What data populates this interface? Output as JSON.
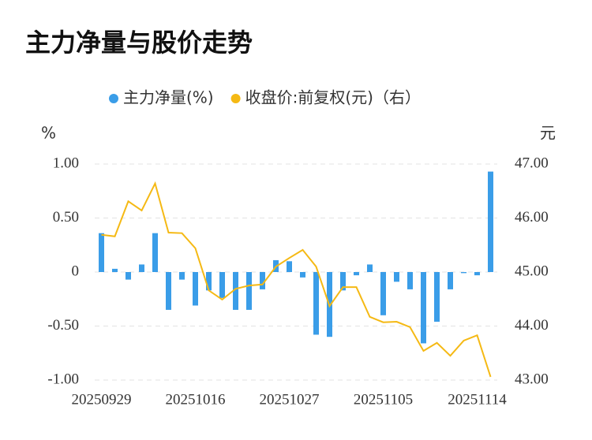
{
  "chart_data": {
    "type": "bar-line",
    "title": "主力净量与股价走势",
    "y_label": "%",
    "y2_label": "元",
    "categories": [
      "20250929",
      null,
      null,
      null,
      null,
      null,
      null,
      "20251016",
      null,
      null,
      null,
      null,
      null,
      null,
      "20251027",
      null,
      null,
      null,
      null,
      null,
      null,
      "20251105",
      null,
      null,
      null,
      null,
      null,
      null,
      "20251114",
      null
    ],
    "series": [
      {
        "name": "主力净量(%)",
        "type": "bar",
        "color": "#3a9de8",
        "values": [
          0.36,
          0.03,
          -0.07,
          0.07,
          0.36,
          -0.35,
          -0.07,
          -0.31,
          -0.17,
          -0.24,
          -0.35,
          -0.35,
          -0.16,
          0.11,
          0.1,
          -0.05,
          -0.58,
          -0.6,
          -0.17,
          -0.03,
          0.07,
          -0.4,
          -0.09,
          -0.16,
          -0.66,
          -0.46,
          -0.16,
          -0.01,
          -0.03,
          0.93
        ]
      },
      {
        "name": "收盘价:前复权(元)（右）",
        "type": "line",
        "axis": "y2",
        "color": "#f5b914",
        "values": [
          45.69,
          45.66,
          46.31,
          46.14,
          46.64,
          45.73,
          45.72,
          45.44,
          44.66,
          44.49,
          44.69,
          44.75,
          44.77,
          45.1,
          45.26,
          45.41,
          45.1,
          44.37,
          44.72,
          44.72,
          44.17,
          44.07,
          44.08,
          43.98,
          43.54,
          43.69,
          43.45,
          43.73,
          43.83,
          43.06
        ]
      }
    ],
    "ylim": [
      -1,
      1
    ],
    "yticks": [
      {
        "value": -1,
        "label": "-1.00"
      },
      {
        "value": -0.5,
        "label": "-0.50"
      },
      0,
      {
        "value": 0.5,
        "label": "0.50"
      },
      {
        "value": 1,
        "label": "1.00"
      }
    ],
    "y2lim": [
      43,
      47
    ],
    "y2ticks": [
      {
        "value": 43,
        "label": "43.00"
      },
      {
        "value": 44,
        "label": "44.00"
      },
      {
        "value": 45,
        "label": "45.00"
      },
      {
        "value": 46,
        "label": "46.00"
      },
      {
        "value": 47,
        "label": "47.00"
      }
    ],
    "grid": true,
    "legend": "top"
  }
}
